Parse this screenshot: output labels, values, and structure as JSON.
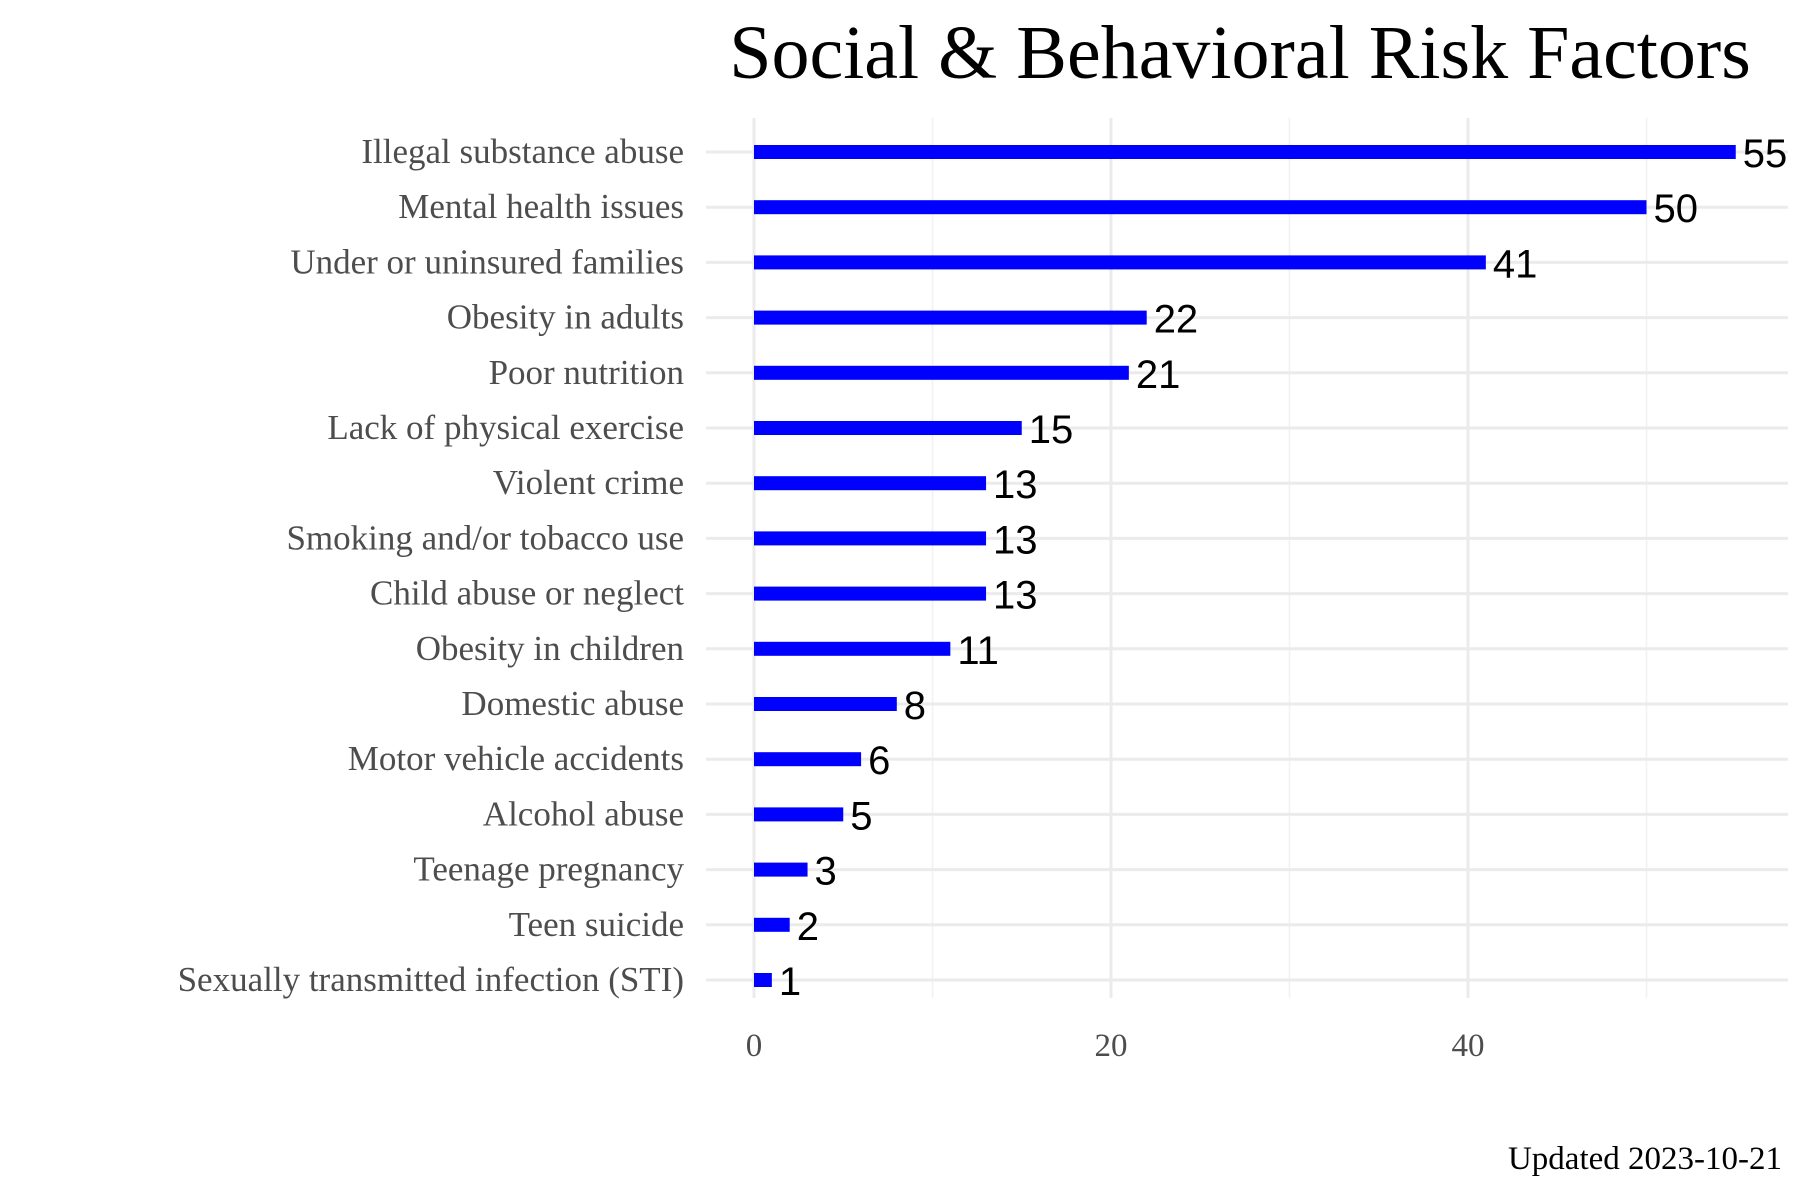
{
  "chart_data": {
    "type": "bar",
    "orientation": "horizontal",
    "title": "Social & Behavioral Risk Factors",
    "caption": "Updated 2023-10-21",
    "xlabel": "",
    "ylabel": "",
    "categories": [
      "Illegal substance abuse",
      "Mental health issues",
      "Under or uninsured families",
      "Obesity in adults",
      "Poor nutrition",
      "Lack of physical exercise",
      "Violent crime",
      "Smoking and/or tobacco use",
      "Child abuse or neglect",
      "Obesity in children",
      "Domestic abuse",
      "Motor vehicle accidents",
      "Alcohol abuse",
      "Teenage pregnancy",
      "Teen suicide",
      "Sexually transmitted infection (STI)"
    ],
    "values": [
      55,
      50,
      41,
      22,
      21,
      15,
      13,
      13,
      13,
      11,
      8,
      6,
      5,
      3,
      2,
      1
    ],
    "xlim": [
      0,
      57.6
    ],
    "x_ticks": [
      0,
      20,
      40
    ],
    "x_tick_labels": [
      "0",
      "20",
      "40"
    ],
    "x_minor_ticks": [
      10,
      30,
      50
    ],
    "grid": true,
    "legend": "none",
    "bar_color": "#0000ff"
  }
}
